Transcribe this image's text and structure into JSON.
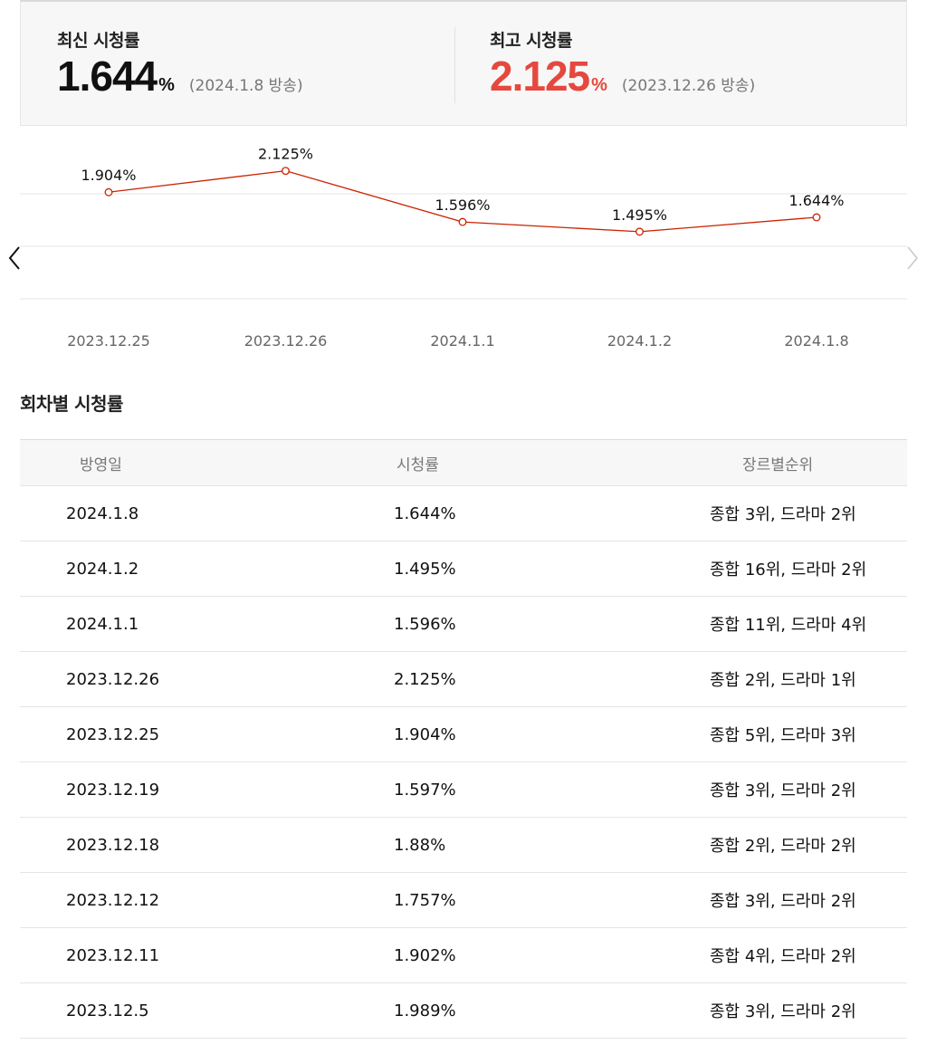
{
  "summary": {
    "latest": {
      "label": "최신 시청률",
      "value": "1.644",
      "unit": "%",
      "date": "(2024.1.8 방송)"
    },
    "best": {
      "label": "최고 시청률",
      "value": "2.125",
      "unit": "%",
      "date": "(2023.12.26 방송)"
    }
  },
  "chart_data": {
    "type": "line",
    "categories": [
      "2023.12.25",
      "2023.12.26",
      "2024.1.1",
      "2024.1.2",
      "2024.1.8"
    ],
    "values": [
      1.904,
      2.125,
      1.596,
      1.495,
      1.644
    ],
    "point_labels": [
      "1.904%",
      "2.125%",
      "1.596%",
      "1.495%",
      "1.644%"
    ],
    "ylim": [
      0.8,
      2.3
    ],
    "grid": true,
    "line_color": "#cc2200",
    "title": "",
    "xlabel": "",
    "ylabel": ""
  },
  "navigation": {
    "prev_icon": "chevron-left-icon",
    "next_icon": "chevron-right-icon"
  },
  "episodes": {
    "title": "회차별 시청률",
    "columns": [
      "방영일",
      "시청률",
      "장르별순위"
    ],
    "rows": [
      [
        "2024.1.8",
        "1.644%",
        "종합 3위, 드라마 2위"
      ],
      [
        "2024.1.2",
        "1.495%",
        "종합 16위, 드라마 2위"
      ],
      [
        "2024.1.1",
        "1.596%",
        "종합 11위, 드라마 4위"
      ],
      [
        "2023.12.26",
        "2.125%",
        "종합 2위, 드라마 1위"
      ],
      [
        "2023.12.25",
        "1.904%",
        "종합 5위, 드라마 3위"
      ],
      [
        "2023.12.19",
        "1.597%",
        "종합 3위, 드라마 2위"
      ],
      [
        "2023.12.18",
        "1.88%",
        "종합 2위, 드라마 2위"
      ],
      [
        "2023.12.12",
        "1.757%",
        "종합 3위, 드라마 2위"
      ],
      [
        "2023.12.11",
        "1.902%",
        "종합 4위, 드라마 2위"
      ],
      [
        "2023.12.5",
        "1.989%",
        "종합 3위, 드라마 2위"
      ]
    ]
  },
  "colors": {
    "accent_red": "#e5483e",
    "line_red": "#cc2200"
  }
}
